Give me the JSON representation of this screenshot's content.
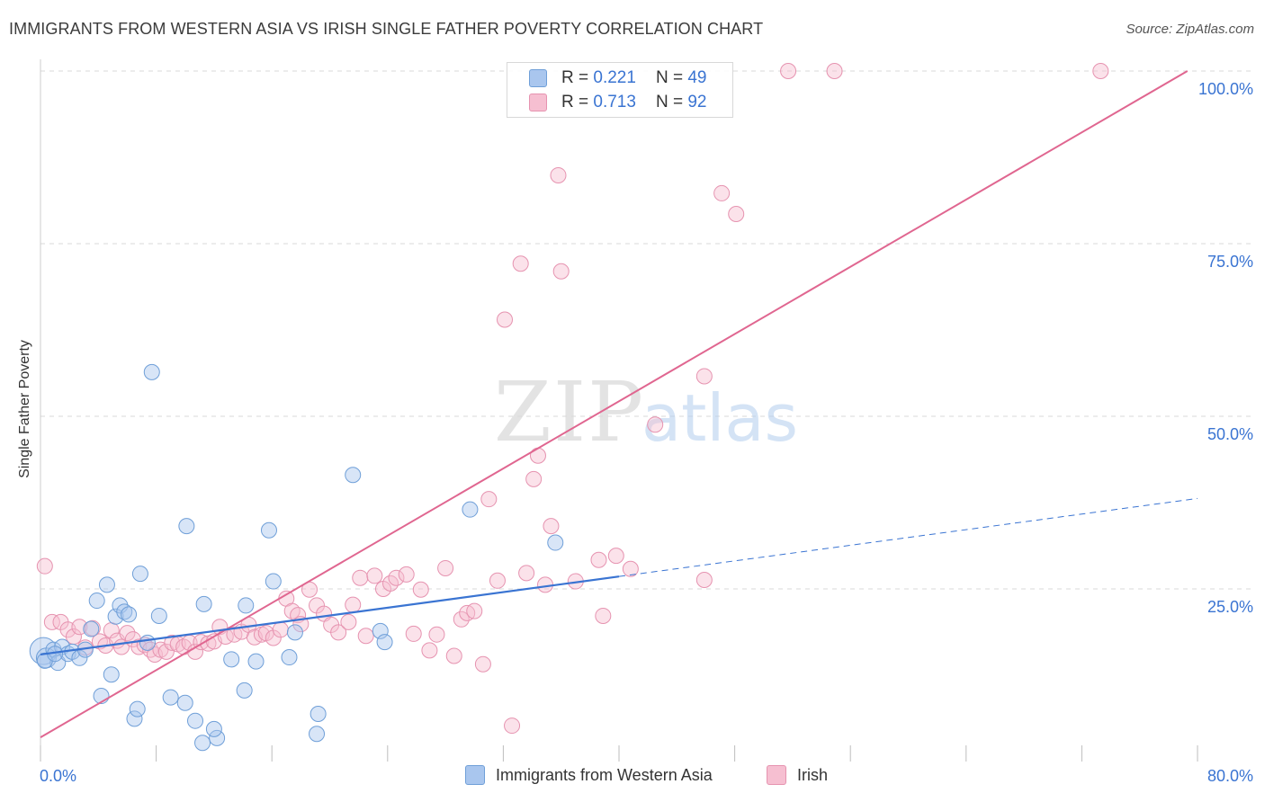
{
  "title": "IMMIGRANTS FROM WESTERN ASIA VS IRISH SINGLE FATHER POVERTY CORRELATION CHART",
  "source": "Source: ZipAtlas.com",
  "colors": {
    "blue": "#6f9fd8",
    "blue_fill": "#a9c6ee",
    "blue_line": "#3a74d2",
    "pink": "#e693b0",
    "pink_fill": "#f6bfd1",
    "pink_line": "#e06690",
    "axis_text": "#3a74d2",
    "grid": "#d8d8d8"
  },
  "legend": {
    "rows": [
      {
        "r_label": "R = ",
        "r_value": "0.221",
        "n_label": "N = ",
        "n_value": "49"
      },
      {
        "r_label": "R = ",
        "r_value": "0.713",
        "n_label": "N = ",
        "n_value": "92"
      }
    ]
  },
  "bottom_legend": {
    "series1": "Immigrants from Western Asia",
    "series2": "Irish"
  },
  "watermark": {
    "zip": "ZIP",
    "atlas": "atlas"
  },
  "chart_data": {
    "type": "scatter",
    "title": "IMMIGRANTS FROM WESTERN ASIA VS IRISH SINGLE FATHER POVERTY CORRELATION CHART",
    "xlabel": "",
    "ylabel": "Single Father Poverty",
    "xlim": [
      0,
      80
    ],
    "ylim": [
      0,
      100
    ],
    "x_tick_labels": [
      "0.0%",
      "80.0%"
    ],
    "y_ticks": [
      25,
      50,
      75,
      100
    ],
    "y_tick_labels": [
      "25.0%",
      "50.0%",
      "75.0%",
      "100.0%"
    ],
    "grid": true,
    "series": [
      {
        "name": "Immigrants from Western Asia",
        "R": 0.221,
        "N": 49,
        "trend": {
          "x": [
            0,
            40
          ],
          "y": [
            15.5,
            26.8
          ]
        },
        "trend_dashed": {
          "x": [
            40,
            80
          ],
          "y": [
            26.8,
            38.1
          ]
        },
        "points": [
          [
            0.2,
            16.0,
            3
          ],
          [
            0.4,
            15.0,
            2
          ],
          [
            0.9,
            16.2,
            1
          ],
          [
            1.2,
            14.3,
            1
          ],
          [
            1.5,
            16.6,
            1
          ],
          [
            1.9,
            15.6,
            1
          ],
          [
            2.2,
            15.9,
            1
          ],
          [
            2.7,
            15.0,
            1
          ],
          [
            3.1,
            16.2,
            1
          ],
          [
            3.5,
            19.2,
            1
          ],
          [
            3.9,
            23.3,
            1
          ],
          [
            4.2,
            9.5,
            1
          ],
          [
            4.6,
            25.6,
            1
          ],
          [
            4.9,
            12.6,
            1
          ],
          [
            5.2,
            21.0,
            1
          ],
          [
            5.5,
            22.6,
            1
          ],
          [
            5.8,
            21.7,
            1
          ],
          [
            6.1,
            21.3,
            1
          ],
          [
            6.5,
            6.2,
            1
          ],
          [
            6.7,
            7.6,
            1
          ],
          [
            6.9,
            27.2,
            1
          ],
          [
            7.4,
            17.2,
            1
          ],
          [
            7.7,
            56.4,
            1
          ],
          [
            8.2,
            21.1,
            1
          ],
          [
            9.0,
            9.3,
            1
          ],
          [
            10.0,
            8.5,
            1
          ],
          [
            10.1,
            34.1,
            1
          ],
          [
            10.7,
            5.9,
            1
          ],
          [
            11.3,
            22.8,
            1
          ],
          [
            11.2,
            2.7,
            1
          ],
          [
            12.2,
            3.4,
            1
          ],
          [
            12.0,
            4.7,
            1
          ],
          [
            13.2,
            14.8,
            1
          ],
          [
            14.1,
            10.3,
            1
          ],
          [
            14.2,
            22.6,
            1
          ],
          [
            14.9,
            14.5,
            1
          ],
          [
            15.8,
            33.5,
            1
          ],
          [
            16.1,
            26.1,
            1
          ],
          [
            17.2,
            15.1,
            1
          ],
          [
            17.6,
            18.7,
            1
          ],
          [
            19.1,
            4.0,
            1
          ],
          [
            19.2,
            6.9,
            1
          ],
          [
            21.6,
            41.5,
            1
          ],
          [
            23.5,
            18.9,
            1
          ],
          [
            23.8,
            17.3,
            1
          ],
          [
            29.7,
            36.5,
            1
          ],
          [
            35.6,
            31.7,
            1
          ],
          [
            0.3,
            14.6,
            1
          ],
          [
            1.0,
            15.6,
            1
          ]
        ]
      },
      {
        "name": "Irish",
        "R": 0.713,
        "N": 92,
        "trend": {
          "x": [
            0,
            79.3
          ],
          "y": [
            3.5,
            100.0
          ]
        },
        "points": [
          [
            0.3,
            28.3
          ],
          [
            0.8,
            20.2
          ],
          [
            1.4,
            20.2
          ],
          [
            1.9,
            19.1
          ],
          [
            2.3,
            18.1
          ],
          [
            2.7,
            19.5
          ],
          [
            3.1,
            16.5
          ],
          [
            3.6,
            19.3
          ],
          [
            4.1,
            17.4
          ],
          [
            4.5,
            16.8
          ],
          [
            4.9,
            19.0
          ],
          [
            5.3,
            17.5
          ],
          [
            5.6,
            16.6
          ],
          [
            6.0,
            18.6
          ],
          [
            6.4,
            17.7
          ],
          [
            6.8,
            16.6
          ],
          [
            7.2,
            16.9
          ],
          [
            7.6,
            16.2
          ],
          [
            7.9,
            15.5
          ],
          [
            8.3,
            16.2
          ],
          [
            8.7,
            15.9
          ],
          [
            9.1,
            17.2
          ],
          [
            9.5,
            17.0
          ],
          [
            9.9,
            16.6
          ],
          [
            10.3,
            17.2
          ],
          [
            10.7,
            15.9
          ],
          [
            11.1,
            17.3
          ],
          [
            11.6,
            17.1
          ],
          [
            12.0,
            17.4
          ],
          [
            12.4,
            19.5
          ],
          [
            12.8,
            18.1
          ],
          [
            13.4,
            18.4
          ],
          [
            13.9,
            18.8
          ],
          [
            14.4,
            19.8
          ],
          [
            14.8,
            18.0
          ],
          [
            15.3,
            18.4
          ],
          [
            15.6,
            18.6
          ],
          [
            16.1,
            17.9
          ],
          [
            16.6,
            19.1
          ],
          [
            17.0,
            23.6
          ],
          [
            17.4,
            21.8
          ],
          [
            17.8,
            21.2
          ],
          [
            18.0,
            19.9
          ],
          [
            18.6,
            24.9
          ],
          [
            19.1,
            22.6
          ],
          [
            19.6,
            21.4
          ],
          [
            20.1,
            19.8
          ],
          [
            20.6,
            18.7
          ],
          [
            21.3,
            20.2
          ],
          [
            21.6,
            22.7
          ],
          [
            22.1,
            26.6
          ],
          [
            22.5,
            18.2
          ],
          [
            23.1,
            26.9
          ],
          [
            23.7,
            25.0
          ],
          [
            24.2,
            25.8
          ],
          [
            24.6,
            26.6
          ],
          [
            25.3,
            27.1
          ],
          [
            25.8,
            18.5
          ],
          [
            26.3,
            24.9
          ],
          [
            26.9,
            16.1
          ],
          [
            27.4,
            18.4
          ],
          [
            28.0,
            28.0
          ],
          [
            28.6,
            15.3
          ],
          [
            29.1,
            20.6
          ],
          [
            29.5,
            21.5
          ],
          [
            30.0,
            21.8
          ],
          [
            30.6,
            14.1
          ],
          [
            31.0,
            38.0
          ],
          [
            31.6,
            26.2
          ],
          [
            32.1,
            64.0
          ],
          [
            32.6,
            5.2
          ],
          [
            33.2,
            72.1
          ],
          [
            33.6,
            27.3
          ],
          [
            34.1,
            40.9
          ],
          [
            34.4,
            44.3
          ],
          [
            34.9,
            25.6
          ],
          [
            35.3,
            34.1
          ],
          [
            35.8,
            84.9
          ],
          [
            36.0,
            71.0
          ],
          [
            37.0,
            26.1
          ],
          [
            38.6,
            29.2
          ],
          [
            38.9,
            21.1
          ],
          [
            39.8,
            29.8
          ],
          [
            40.8,
            27.9
          ],
          [
            42.5,
            48.8
          ],
          [
            45.9,
            26.3
          ],
          [
            45.9,
            55.8
          ],
          [
            47.1,
            82.3
          ],
          [
            48.1,
            79.3
          ],
          [
            51.7,
            100.0
          ],
          [
            54.9,
            100.0
          ],
          [
            73.3,
            100.0
          ]
        ]
      }
    ]
  }
}
